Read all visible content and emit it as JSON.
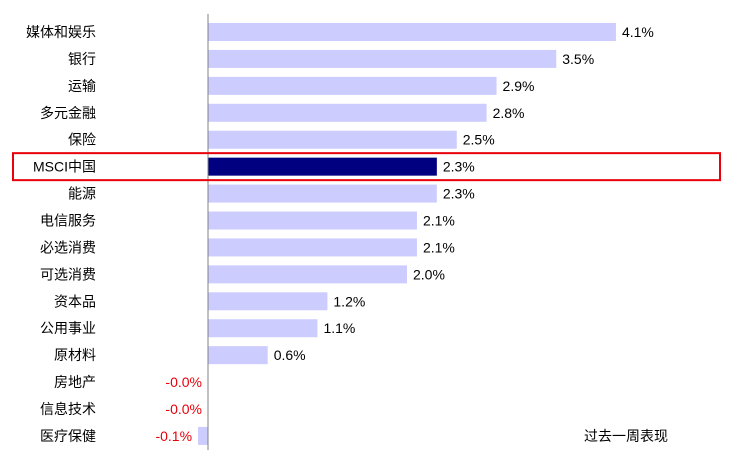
{
  "chart_data": {
    "type": "bar",
    "orientation": "horizontal",
    "categories": [
      "媒体和娱乐",
      "银行",
      "运输",
      "多元金融",
      "保险",
      "MSCI中国",
      "能源",
      "电信服务",
      "必选消费",
      "可选消费",
      "资本品",
      "公用事业",
      "原材料",
      "房地产",
      "信息技术",
      "医疗保健"
    ],
    "values": [
      4.1,
      3.5,
      2.9,
      2.8,
      2.5,
      2.3,
      2.3,
      2.1,
      2.1,
      2.0,
      1.2,
      1.1,
      0.6,
      -0.0,
      -0.0,
      -0.1
    ],
    "value_labels": [
      "4.1%",
      "3.5%",
      "2.9%",
      "2.8%",
      "2.5%",
      "2.3%",
      "2.3%",
      "2.1%",
      "2.1%",
      "2.0%",
      "1.2%",
      "1.1%",
      "0.6%",
      "-0.0%",
      "-0.0%",
      "-0.1%"
    ],
    "unit": "%",
    "xlim": [
      -0.12,
      4.1
    ],
    "highlight_category": "MSCI中国",
    "annotation": "过去一周表现",
    "grid": false,
    "colors": {
      "bar": "#ccccff",
      "highlight_bar": "#000080",
      "highlight_box": "#e8000b",
      "axis": "#808080",
      "negative_label": "#e8000b"
    }
  }
}
